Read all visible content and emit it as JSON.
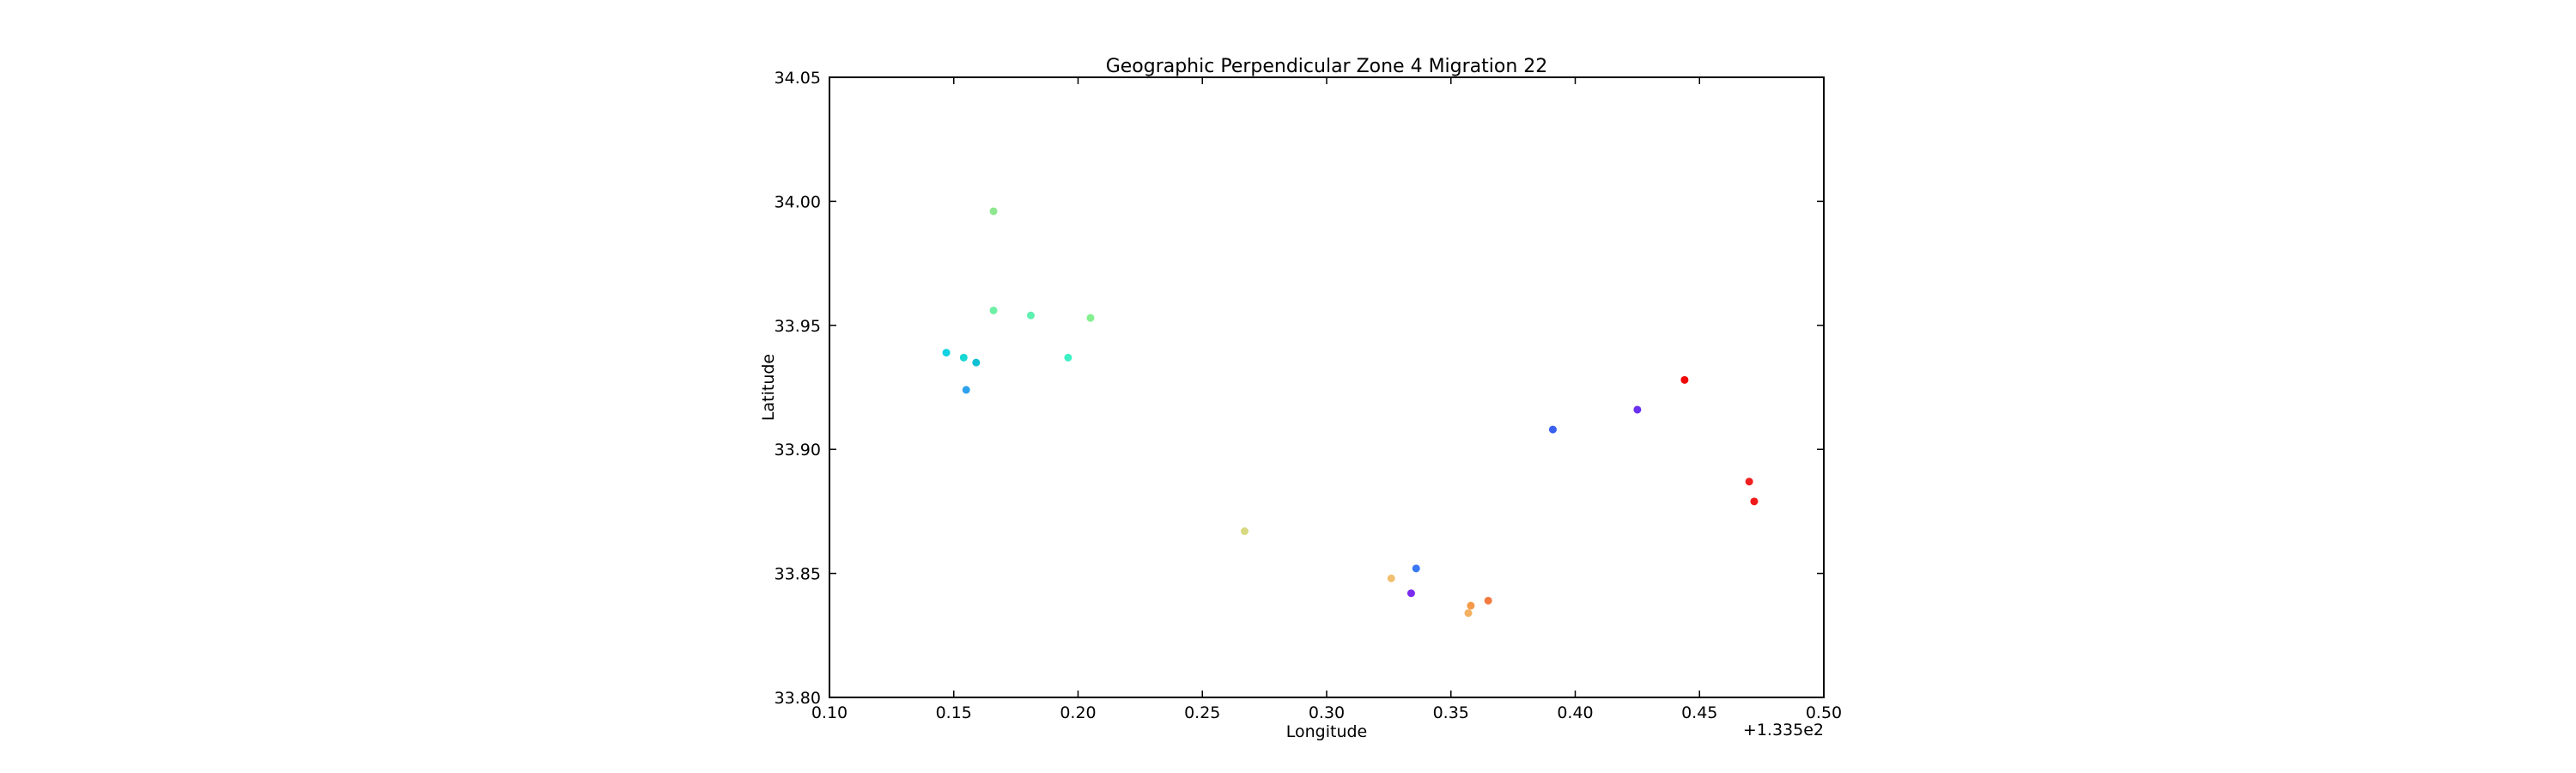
{
  "chart_data": {
    "type": "scatter",
    "title": "Geographic Perpendicular Zone 4 Migration 22",
    "xlabel": "Longitude",
    "ylabel": "Latitude",
    "x_offset_label": "+1.335e2",
    "xlim": [
      0.1,
      0.5
    ],
    "ylim": [
      33.8,
      34.05
    ],
    "x_ticks": [
      "0.10",
      "0.15",
      "0.20",
      "0.25",
      "0.30",
      "0.35",
      "0.40",
      "0.45",
      "0.50"
    ],
    "y_ticks": [
      "33.80",
      "33.85",
      "33.90",
      "33.95",
      "34.00",
      "34.05"
    ],
    "grid": false,
    "points": [
      {
        "x": 0.166,
        "y": 33.996,
        "color": "#8ee68e"
      },
      {
        "x": 0.166,
        "y": 33.956,
        "color": "#6ef0a4"
      },
      {
        "x": 0.181,
        "y": 33.954,
        "color": "#5ef0b0"
      },
      {
        "x": 0.205,
        "y": 33.953,
        "color": "#84f090"
      },
      {
        "x": 0.196,
        "y": 33.937,
        "color": "#3ef0c4"
      },
      {
        "x": 0.147,
        "y": 33.939,
        "color": "#10d2e0"
      },
      {
        "x": 0.154,
        "y": 33.937,
        "color": "#18d8d4"
      },
      {
        "x": 0.159,
        "y": 33.935,
        "color": "#10c0d4"
      },
      {
        "x": 0.155,
        "y": 33.924,
        "color": "#2ca2ec"
      },
      {
        "x": 0.267,
        "y": 33.867,
        "color": "#d8d880"
      },
      {
        "x": 0.326,
        "y": 33.848,
        "color": "#f0c070"
      },
      {
        "x": 0.336,
        "y": 33.852,
        "color": "#3a78f4"
      },
      {
        "x": 0.334,
        "y": 33.842,
        "color": "#7a2cf0"
      },
      {
        "x": 0.357,
        "y": 33.834,
        "color": "#f4b060"
      },
      {
        "x": 0.358,
        "y": 33.837,
        "color": "#f49a48"
      },
      {
        "x": 0.365,
        "y": 33.839,
        "color": "#f47a40"
      },
      {
        "x": 0.391,
        "y": 33.908,
        "color": "#3a60f0"
      },
      {
        "x": 0.425,
        "y": 33.916,
        "color": "#6a30f0"
      },
      {
        "x": 0.444,
        "y": 33.928,
        "color": "#f00808"
      },
      {
        "x": 0.47,
        "y": 33.887,
        "color": "#f02020"
      },
      {
        "x": 0.472,
        "y": 33.879,
        "color": "#f01818"
      }
    ]
  }
}
